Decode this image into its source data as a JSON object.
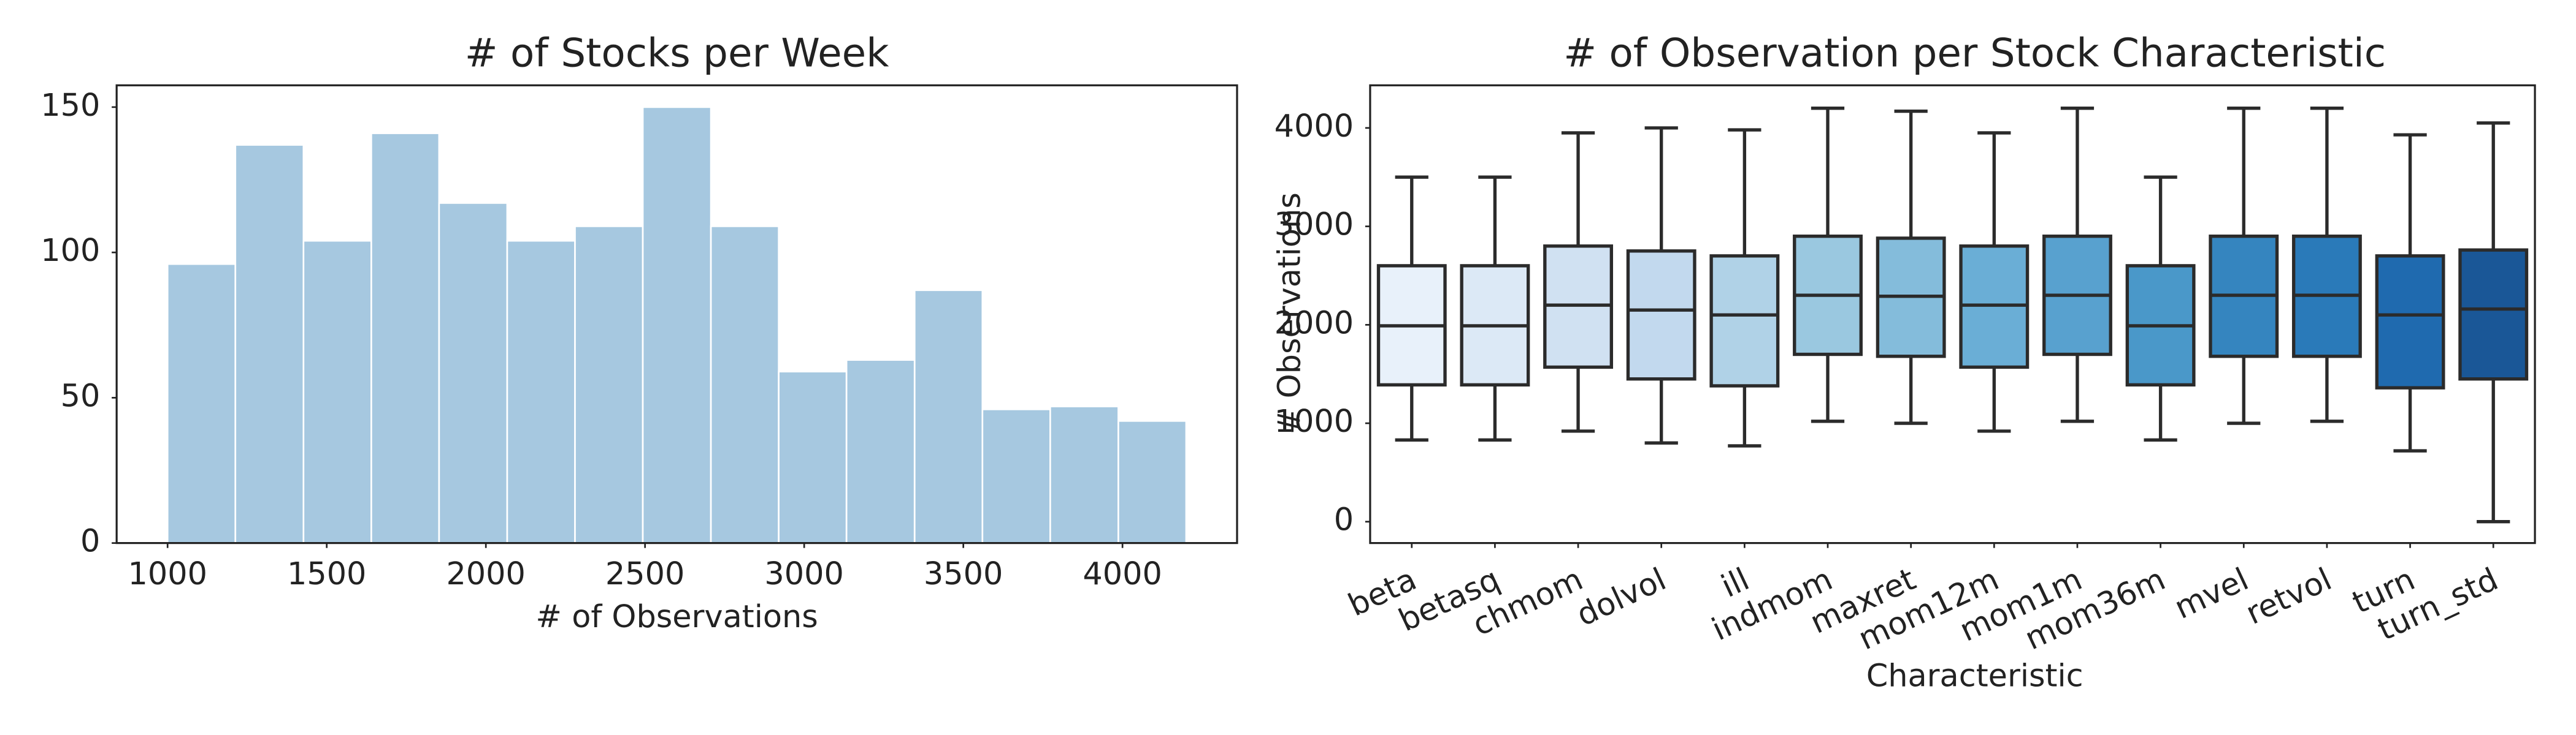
{
  "chart_data": [
    {
      "type": "histogram",
      "title": "# of Stocks per Week",
      "xlabel": "# of Observations",
      "bins": [
        1000,
        1213,
        1427,
        1640,
        1853,
        2067,
        2280,
        2493,
        2707,
        2920,
        3133,
        3347,
        3560,
        3773,
        3987,
        4200
      ],
      "counts": [
        96,
        137,
        104,
        141,
        117,
        104,
        109,
        150,
        109,
        59,
        63,
        87,
        46,
        47,
        42
      ],
      "color": "#a6c8e0",
      "xlim": [
        840,
        4360
      ],
      "xticks": [
        1000,
        1500,
        2000,
        2500,
        3000,
        3500,
        4000
      ],
      "ylim": [
        0,
        157.5
      ],
      "yticks": [
        0,
        50,
        100,
        150
      ]
    },
    {
      "type": "box",
      "title": "# of Observation per Stock Characteristic",
      "xlabel": "Characteristic",
      "ylabel": "# Observations",
      "categories": [
        "beta",
        "betasq",
        "chmom",
        "dolvol",
        "ill",
        "indmom",
        "maxret",
        "mom12m",
        "mom1m",
        "mom36m",
        "mvel",
        "retvol",
        "turn",
        "turn_std"
      ],
      "boxes": [
        {
          "whislo": 830,
          "q1": 1390,
          "med": 1990,
          "q3": 2600,
          "whishi": 3500
        },
        {
          "whislo": 830,
          "q1": 1390,
          "med": 1990,
          "q3": 2600,
          "whishi": 3500
        },
        {
          "whislo": 920,
          "q1": 1570,
          "med": 2200,
          "q3": 2800,
          "whishi": 3950
        },
        {
          "whislo": 800,
          "q1": 1450,
          "med": 2150,
          "q3": 2750,
          "whishi": 4000
        },
        {
          "whislo": 770,
          "q1": 1380,
          "med": 2100,
          "q3": 2700,
          "whishi": 3980
        },
        {
          "whislo": 1020,
          "q1": 1700,
          "med": 2300,
          "q3": 2900,
          "whishi": 4200
        },
        {
          "whislo": 1000,
          "q1": 1680,
          "med": 2290,
          "q3": 2880,
          "whishi": 4170
        },
        {
          "whislo": 920,
          "q1": 1570,
          "med": 2200,
          "q3": 2800,
          "whishi": 3950
        },
        {
          "whislo": 1020,
          "q1": 1700,
          "med": 2300,
          "q3": 2900,
          "whishi": 4200
        },
        {
          "whislo": 830,
          "q1": 1390,
          "med": 1990,
          "q3": 2600,
          "whishi": 3500
        },
        {
          "whislo": 1000,
          "q1": 1680,
          "med": 2300,
          "q3": 2900,
          "whishi": 4200
        },
        {
          "whislo": 1020,
          "q1": 1680,
          "med": 2300,
          "q3": 2900,
          "whishi": 4200
        },
        {
          "whislo": 720,
          "q1": 1360,
          "med": 2100,
          "q3": 2700,
          "whishi": 3930
        },
        {
          "whislo": 0,
          "q1": 1450,
          "med": 2160,
          "q3": 2760,
          "whishi": 4050
        }
      ],
      "colors": [
        "#e8f1fa",
        "#dce9f6",
        "#d0e1f2",
        "#c2d9ee",
        "#b0d2e7",
        "#9ac8e0",
        "#84bcdb",
        "#6aaed6",
        "#58a1cf",
        "#4a98c9",
        "#3585bf",
        "#2a7ab9",
        "#1f6aaf",
        "#1a5797"
      ],
      "ylim": [
        -217,
        4433
      ],
      "yticks": [
        0,
        1000,
        2000,
        3000,
        4000
      ]
    }
  ]
}
